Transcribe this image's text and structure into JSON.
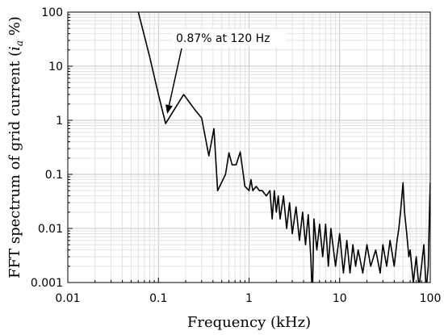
{
  "chart_data": {
    "type": "line",
    "xlabel": "Frequency (kHz)",
    "ylabel_prefix": "FFT spectrum of grid current (",
    "ylabel_var": "i",
    "ylabel_sub": "a",
    "ylabel_suffix": " %)",
    "xscale": "log",
    "yscale": "log",
    "xlim": [
      0.01,
      100
    ],
    "ylim": [
      0.001,
      100
    ],
    "grid": true,
    "x_tick_labels": [
      "0.01",
      "0.1",
      "1",
      "10",
      "100"
    ],
    "y_tick_labels": [
      "0.001",
      "0.01",
      "0.1",
      "1",
      "10",
      "100"
    ],
    "annotation": {
      "text": "0.87% at 120 Hz",
      "point": {
        "x": 0.12,
        "y": 0.87
      }
    },
    "series": [
      {
        "color": "#000000",
        "points": [
          [
            0.06,
            100
          ],
          [
            0.08,
            15
          ],
          [
            0.1,
            3
          ],
          [
            0.12,
            0.87
          ],
          [
            0.19,
            3.0
          ],
          [
            0.25,
            1.6
          ],
          [
            0.3,
            1.1
          ],
          [
            0.36,
            0.22
          ],
          [
            0.41,
            0.7
          ],
          [
            0.45,
            0.05
          ],
          [
            0.55,
            0.1
          ],
          [
            0.6,
            0.25
          ],
          [
            0.65,
            0.15
          ],
          [
            0.72,
            0.15
          ],
          [
            0.8,
            0.26
          ],
          [
            0.9,
            0.06
          ],
          [
            1.0,
            0.05
          ],
          [
            1.05,
            0.08
          ],
          [
            1.1,
            0.05
          ],
          [
            1.2,
            0.06
          ],
          [
            1.3,
            0.05
          ],
          [
            1.4,
            0.05
          ],
          [
            1.55,
            0.04
          ],
          [
            1.7,
            0.05
          ],
          [
            1.8,
            0.015
          ],
          [
            1.9,
            0.05
          ],
          [
            2.0,
            0.02
          ],
          [
            2.1,
            0.04
          ],
          [
            2.2,
            0.015
          ],
          [
            2.4,
            0.04
          ],
          [
            2.6,
            0.01
          ],
          [
            2.8,
            0.03
          ],
          [
            3.0,
            0.008
          ],
          [
            3.3,
            0.025
          ],
          [
            3.6,
            0.006
          ],
          [
            3.9,
            0.02
          ],
          [
            4.2,
            0.005
          ],
          [
            4.5,
            0.018
          ],
          [
            4.8,
            0.003
          ],
          [
            5.0,
            0.0005
          ],
          [
            5.2,
            0.015
          ],
          [
            5.6,
            0.004
          ],
          [
            6.0,
            0.012
          ],
          [
            6.5,
            0.003
          ],
          [
            7.0,
            0.012
          ],
          [
            7.5,
            0.002
          ],
          [
            8.0,
            0.01
          ],
          [
            9.0,
            0.002
          ],
          [
            10,
            0.008
          ],
          [
            11,
            0.0015
          ],
          [
            12,
            0.006
          ],
          [
            13,
            0.0015
          ],
          [
            14,
            0.005
          ],
          [
            15,
            0.002
          ],
          [
            16,
            0.004
          ],
          [
            18,
            0.0015
          ],
          [
            20,
            0.005
          ],
          [
            22,
            0.002
          ],
          [
            25,
            0.004
          ],
          [
            28,
            0.0015
          ],
          [
            30,
            0.005
          ],
          [
            33,
            0.002
          ],
          [
            36,
            0.006
          ],
          [
            40,
            0.002
          ],
          [
            43,
            0.006
          ],
          [
            45,
            0.01
          ],
          [
            47,
            0.02
          ],
          [
            50,
            0.07
          ],
          [
            52,
            0.02
          ],
          [
            55,
            0.008
          ],
          [
            58,
            0.003
          ],
          [
            60,
            0.004
          ],
          [
            65,
            0.001
          ],
          [
            70,
            0.003
          ],
          [
            75,
            0.0008
          ],
          [
            80,
            0.002
          ],
          [
            85,
            0.005
          ],
          [
            90,
            0.0007
          ],
          [
            95,
            0.002
          ],
          [
            97,
            0.01
          ],
          [
            99,
            0.04
          ],
          [
            100,
            0.07
          ]
        ]
      }
    ]
  }
}
